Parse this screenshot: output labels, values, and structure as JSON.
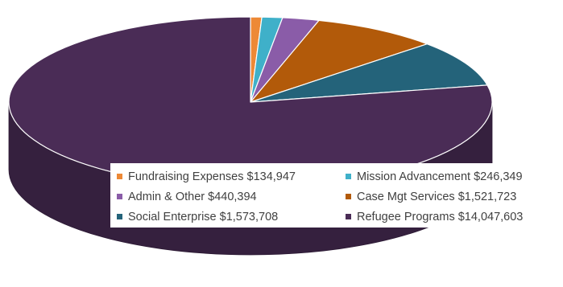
{
  "chart_data": {
    "type": "pie",
    "style": "3d",
    "title": "",
    "legend_position": "bottom-right",
    "slices": [
      {
        "label": "Fundraising Expenses",
        "value": 134947,
        "value_text": "$134,947",
        "color": "#ed8936"
      },
      {
        "label": "Mission Advancement",
        "value": 246349,
        "value_text": "$246,349",
        "color": "#3fb0c9"
      },
      {
        "label": "Admin & Other",
        "value": 440394,
        "value_text": "$440,394",
        "color": "#8a5ca8"
      },
      {
        "label": "Case Mgt Services",
        "value": 1521723,
        "value_text": "$1,521,723",
        "color": "#b25a0a"
      },
      {
        "label": "Social Enterprise",
        "value": 1573708,
        "value_text": "$1,573,708",
        "color": "#24637a"
      },
      {
        "label": "Refugee Programs",
        "value": 14047603,
        "value_text": "$14,047,603",
        "color": "#4a2c56"
      }
    ]
  }
}
